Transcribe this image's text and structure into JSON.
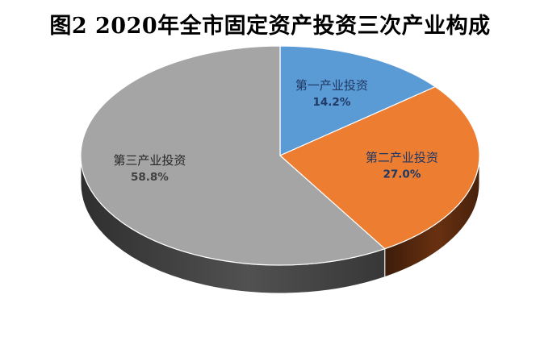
{
  "chart_data": {
    "type": "pie",
    "title": "图2  2020年全市固定资产投资三次产业构成",
    "categories": [
      "第一产业投资",
      "第二产业投资",
      "第三产业投资"
    ],
    "values": [
      14.2,
      27.0,
      58.8
    ],
    "value_labels": [
      "14.2%",
      "27.0%",
      "58.8%"
    ],
    "colors": [
      "#5b9bd5",
      "#ed7d31",
      "#a5a5a5"
    ],
    "side_colors": [
      "#2f5f8f",
      "#6e3311",
      "#555555"
    ],
    "label_colors": [
      "#1f3864",
      "#1f3864",
      "#262626"
    ],
    "pct_colors": [
      "#1f3864",
      "#1f3864",
      "#404040"
    ],
    "style": "3d"
  }
}
